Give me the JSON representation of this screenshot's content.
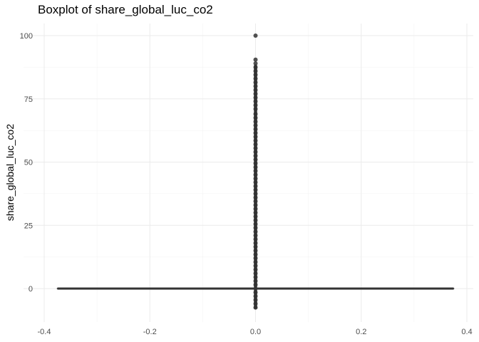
{
  "chart_data": {
    "type": "boxplot",
    "title": "Boxplot of share_global_luc_co2",
    "xlabel": "",
    "ylabel": "share_global_luc_co2",
    "xlim": [
      -0.4,
      0.4
    ],
    "ylim": [
      -10,
      100
    ],
    "x_ticks": [
      -0.4,
      -0.2,
      0.0,
      0.2,
      0.4
    ],
    "x_tick_labels": [
      "-0.4",
      "-0.2",
      "0.0",
      "0.2",
      "0.4"
    ],
    "y_ticks": [
      0,
      25,
      50,
      75,
      100
    ],
    "y_tick_labels": [
      "0",
      "25",
      "50",
      "75",
      "100"
    ],
    "grid": true,
    "box": {
      "x_min": -0.375,
      "x_max": 0.375,
      "q1": 0,
      "median": 0,
      "q3": 0,
      "whisker_low": 0,
      "whisker_high": 0
    },
    "outlier_x": 0,
    "outliers": [
      100,
      90.5,
      89,
      87.5,
      86,
      84.5,
      83,
      81.5,
      80,
      78.5,
      77,
      75.5,
      74,
      72.5,
      71,
      69,
      67.5,
      66,
      64.5,
      63,
      61.5,
      60,
      58.5,
      57,
      55.5,
      54,
      52.5,
      51,
      49.5,
      48,
      46.5,
      45,
      43.5,
      42,
      40.5,
      39,
      37.5,
      36,
      34.5,
      33,
      31.5,
      30,
      28.5,
      27,
      25.5,
      24,
      22.5,
      21,
      19.5,
      18,
      16.5,
      15,
      13.5,
      12,
      10.5,
      9,
      7.5,
      6,
      4.5,
      3,
      1.5,
      -1.5,
      -3,
      -4.5,
      -6,
      -7.5
    ],
    "colors": {
      "box": "#333333",
      "outlier": "#333333"
    }
  }
}
